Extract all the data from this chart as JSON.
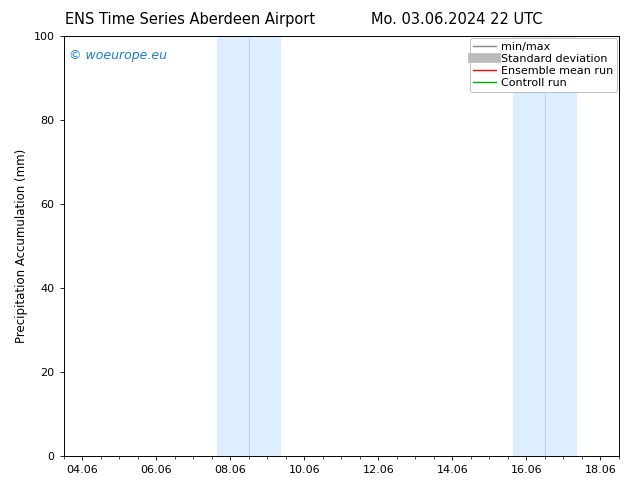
{
  "title_left": "ENS Time Series Aberdeen Airport",
  "title_right": "Mo. 03.06.2024 22 UTC",
  "ylabel": "Precipitation Accumulation (mm)",
  "ylim": [
    0,
    100
  ],
  "yticks": [
    0,
    20,
    40,
    60,
    80,
    100
  ],
  "xtick_labels": [
    "04.06",
    "06.06",
    "08.06",
    "10.06",
    "12.06",
    "14.06",
    "16.06",
    "18.06"
  ],
  "xtick_positions": [
    0,
    2,
    4,
    6,
    8,
    10,
    12,
    14
  ],
  "xlim": [
    -0.5,
    14.5
  ],
  "shaded_bands": [
    {
      "xmin": 3.65,
      "xmax": 5.35,
      "color": "#ddeeff",
      "divider": 4.5
    },
    {
      "xmin": 11.65,
      "xmax": 13.35,
      "color": "#ddeeff",
      "divider": 12.5
    }
  ],
  "watermark_text": "© woeurope.eu",
  "watermark_color": "#1a7fd4",
  "legend_items": [
    {
      "label": "min/max",
      "color": "#888888",
      "linestyle": "-",
      "linewidth": 1.0
    },
    {
      "label": "Standard deviation",
      "color": "#bbbbbb",
      "linestyle": "-",
      "linewidth": 7
    },
    {
      "label": "Ensemble mean run",
      "color": "#ff0000",
      "linestyle": "-",
      "linewidth": 1.0
    },
    {
      "label": "Controll run",
      "color": "#00aa00",
      "linestyle": "-",
      "linewidth": 1.0
    }
  ],
  "background_color": "#ffffff",
  "font_size_title": 10.5,
  "font_size_axis": 8.5,
  "font_size_tick": 8,
  "font_size_legend": 8,
  "font_size_watermark": 9
}
